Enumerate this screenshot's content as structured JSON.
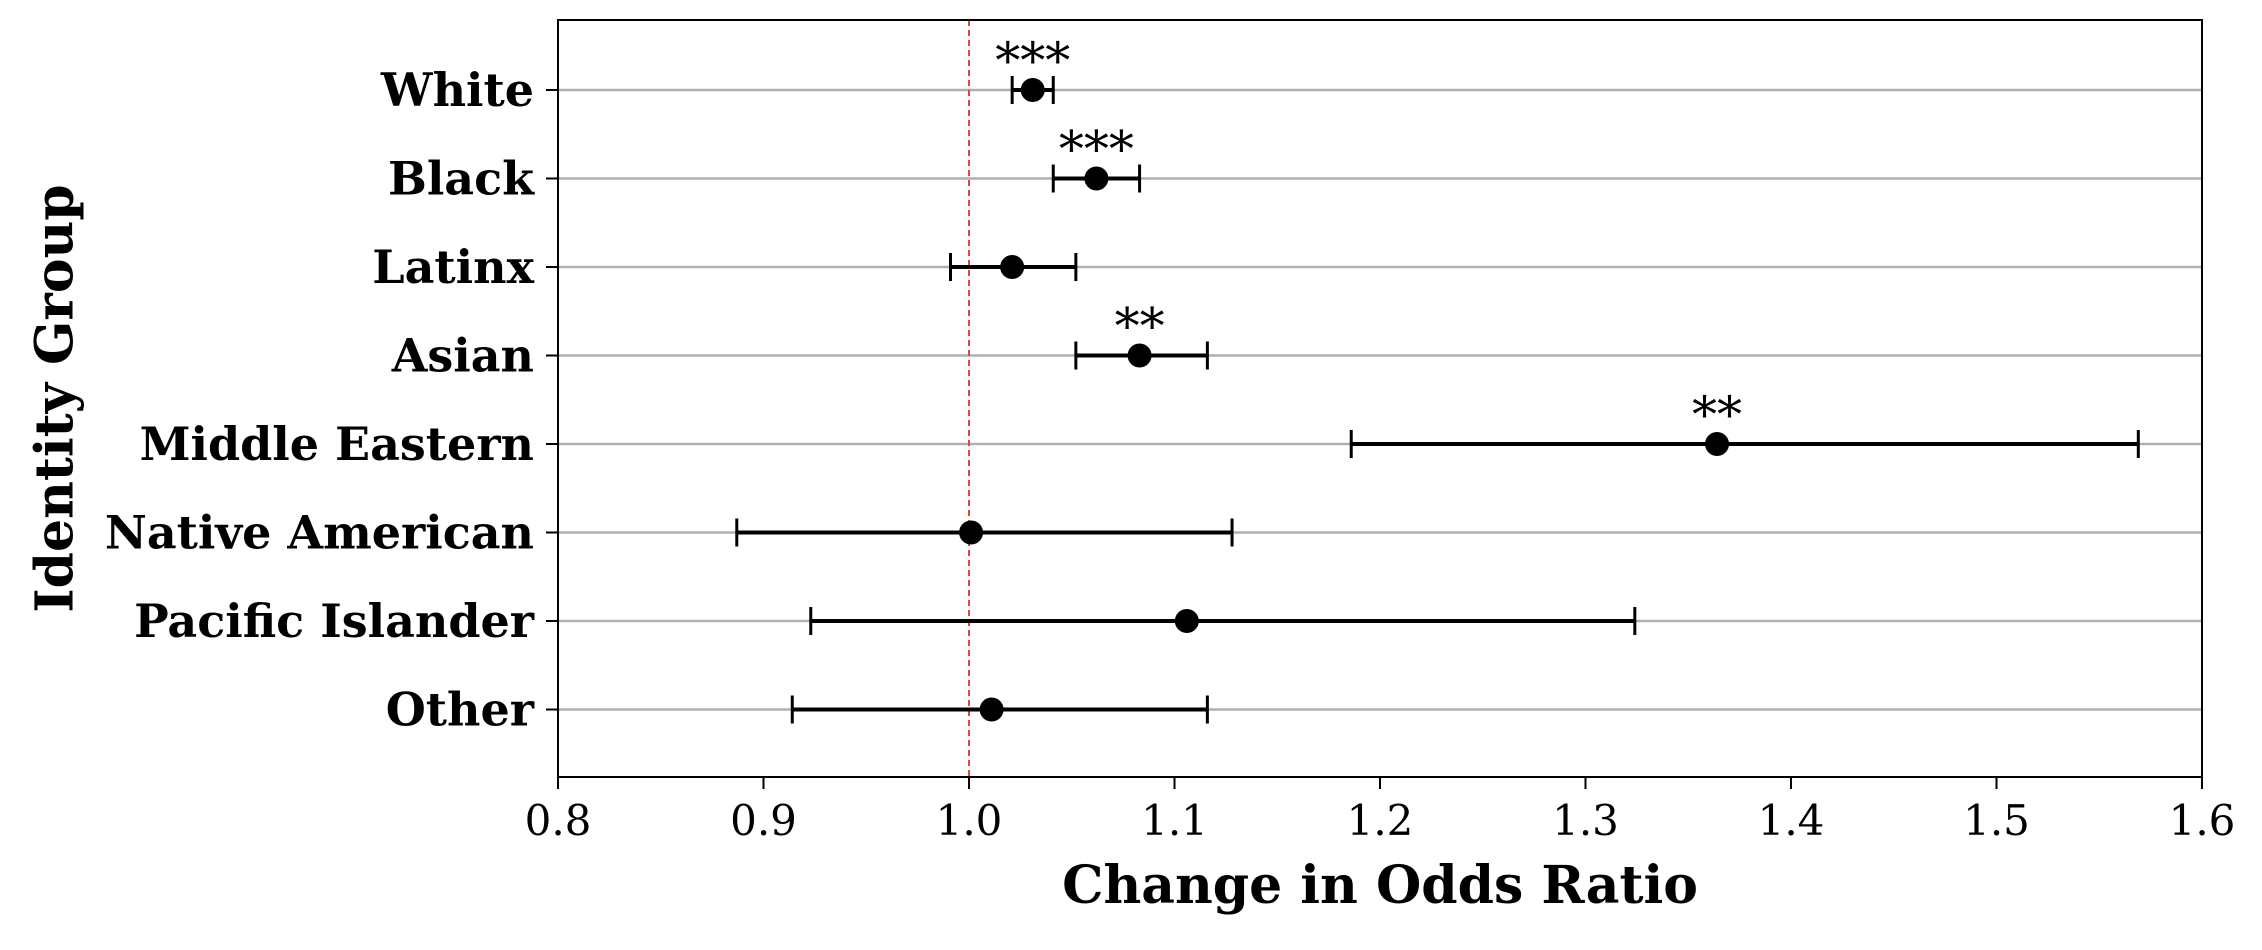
{
  "chart_data": {
    "type": "errorbar",
    "xlabel": "Change in Odds Ratio",
    "ylabel": "Identity Group",
    "xlim": [
      0.8,
      1.6
    ],
    "xticks": [
      0.8,
      0.9,
      1.0,
      1.1,
      1.2,
      1.3,
      1.4,
      1.5,
      1.6
    ],
    "xtick_labels": [
      "0.8",
      "0.9",
      "1.0",
      "1.1",
      "1.2",
      "1.3",
      "1.4",
      "1.5",
      "1.6"
    ],
    "reference_line": {
      "x": 1.0,
      "style": "dashed",
      "color": "#e8423a"
    },
    "grid": "horizontal",
    "colors": {
      "points": "#000000",
      "grid": "#b0b0b0",
      "reference": "#e8423a"
    },
    "categories": [
      "White",
      "Black",
      "Latinx",
      "Asian",
      "Middle Eastern",
      "Native American",
      "Pacific Islander",
      "Other"
    ],
    "values": [
      1.031,
      1.062,
      1.021,
      1.083,
      1.364,
      1.001,
      1.106,
      1.011
    ],
    "lower": [
      1.021,
      1.041,
      0.991,
      1.052,
      1.186,
      0.887,
      0.923,
      0.914
    ],
    "upper": [
      1.041,
      1.083,
      1.052,
      1.116,
      1.569,
      1.128,
      1.324,
      1.116
    ],
    "significance": [
      "***",
      "***",
      "",
      "**",
      "**",
      "",
      "",
      ""
    ]
  }
}
